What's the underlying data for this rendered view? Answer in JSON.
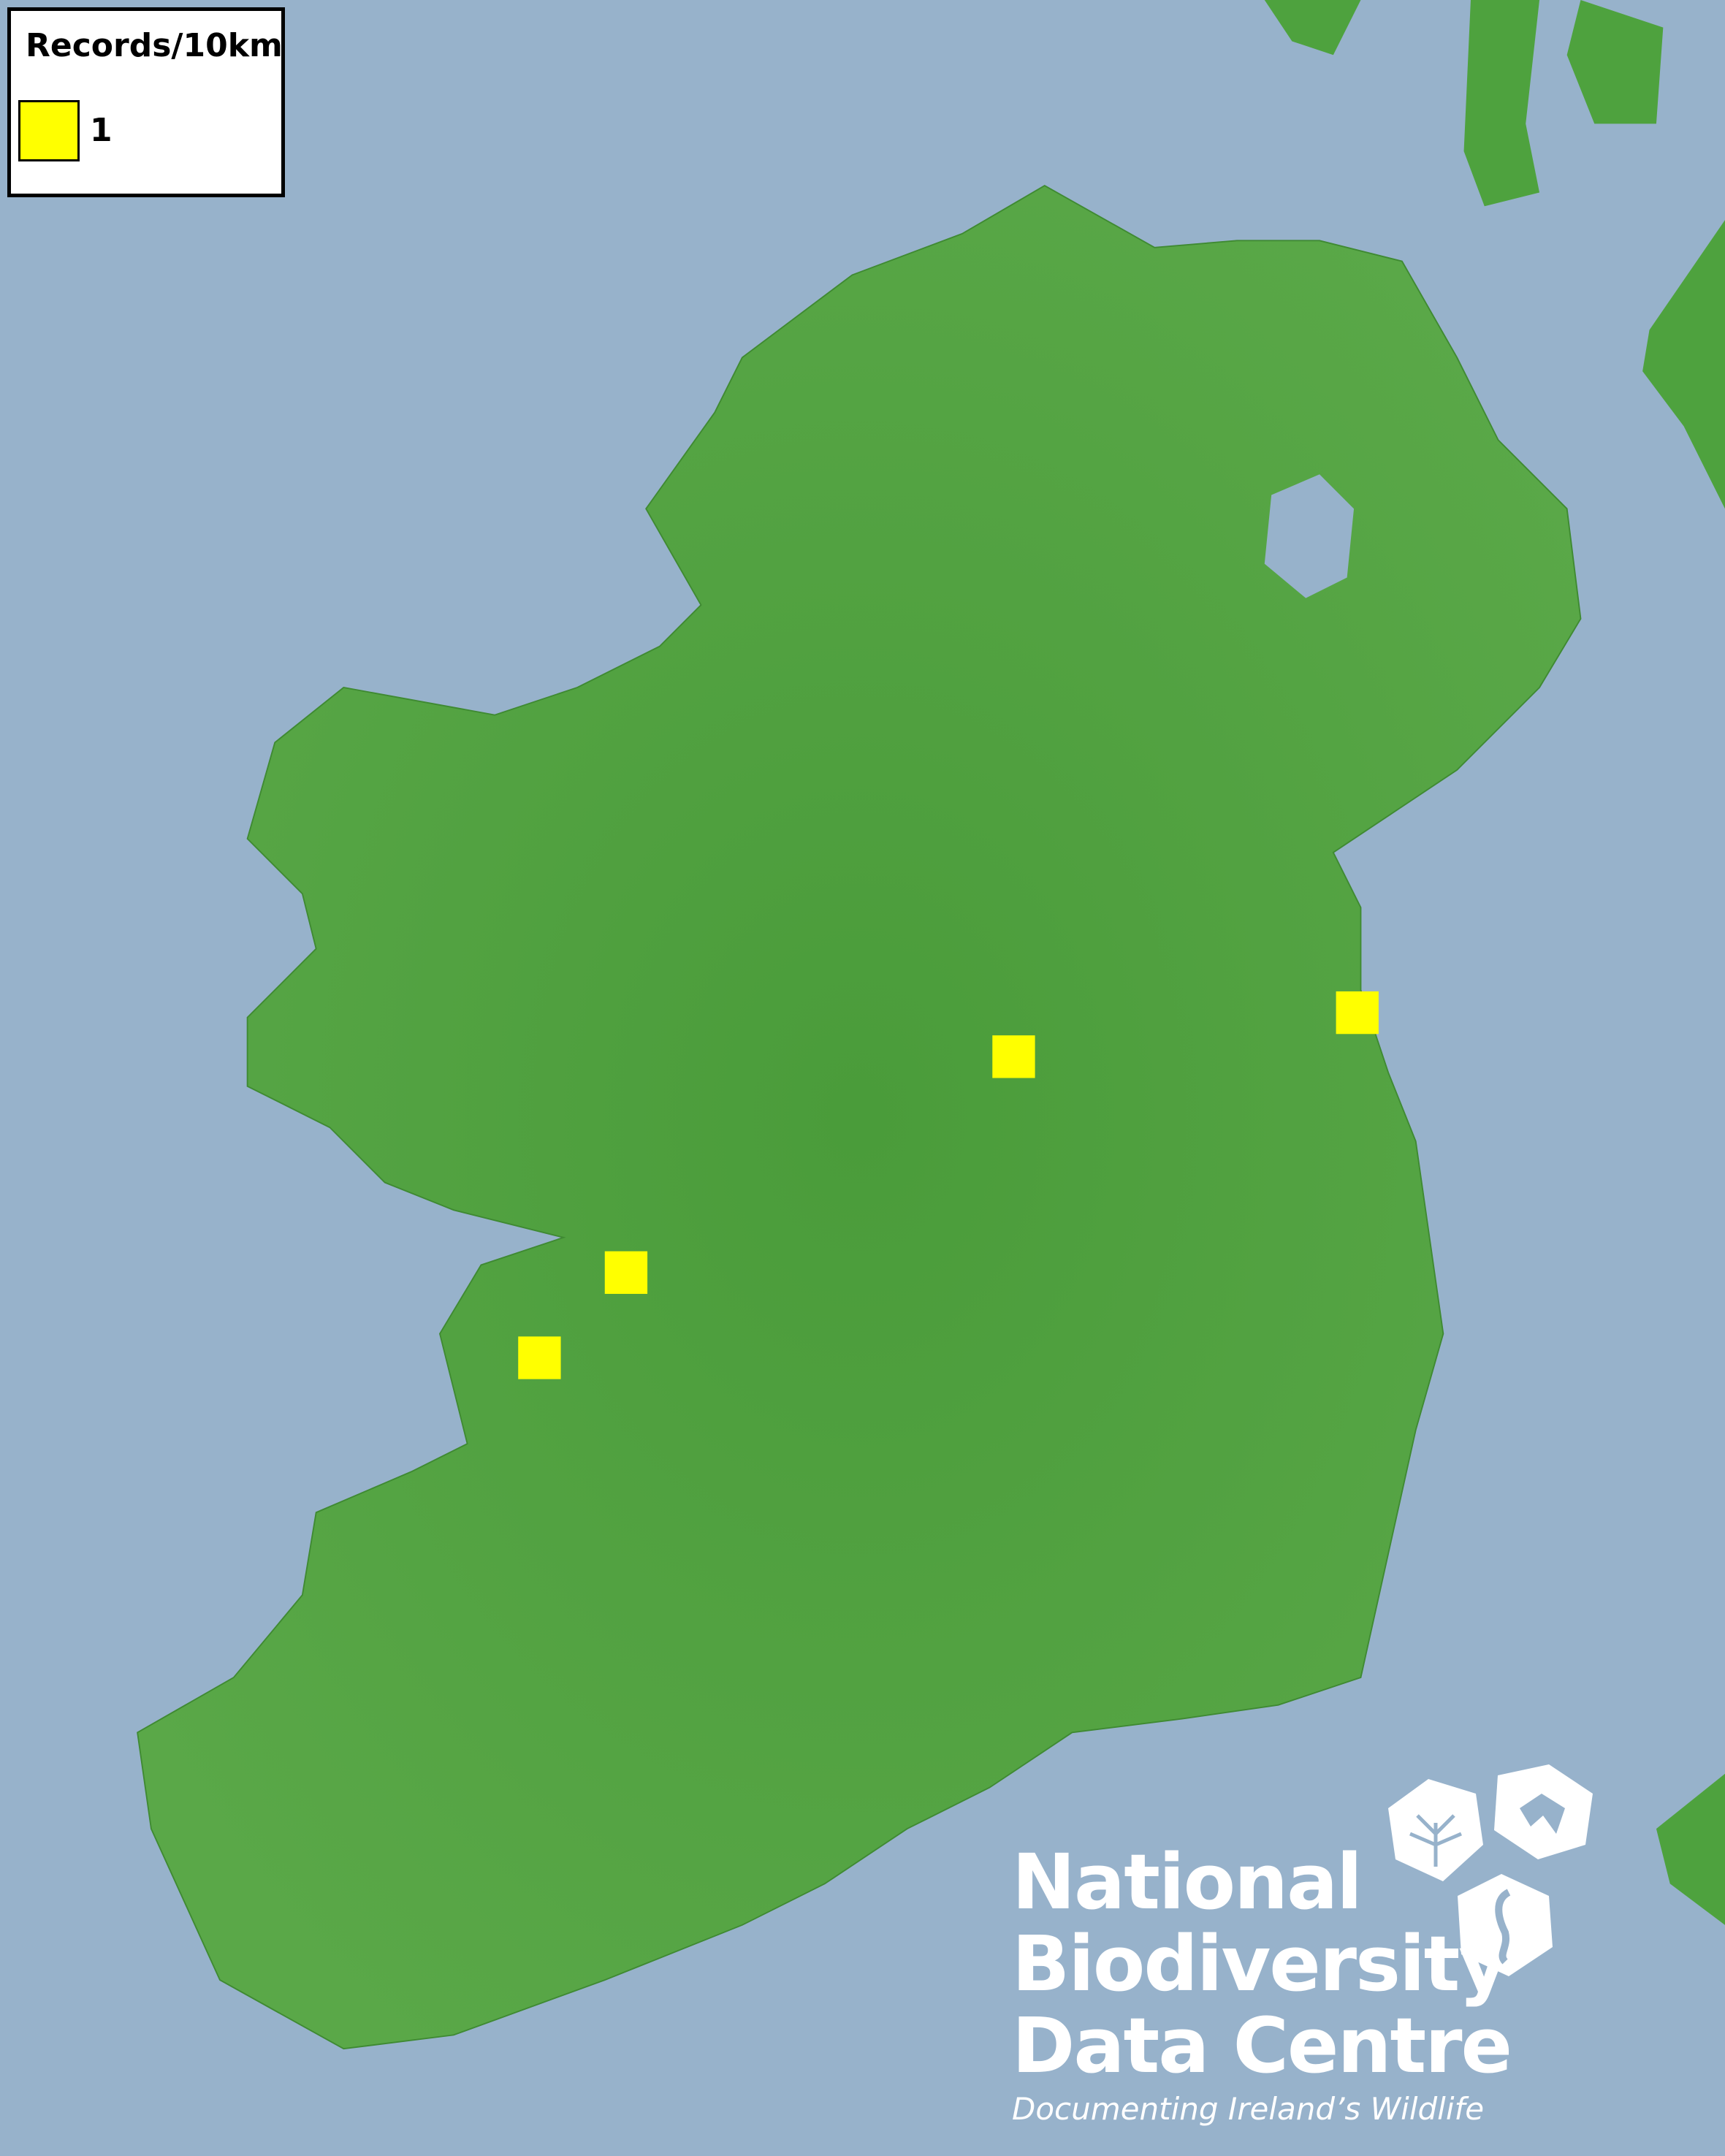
{
  "legend": {
    "title": "Records/10km",
    "items": [
      {
        "label": "1",
        "color": "#ffff00"
      }
    ]
  },
  "records": [
    {
      "count": 1,
      "location": "east coast"
    },
    {
      "count": 1,
      "location": "midlands"
    },
    {
      "count": 1,
      "location": "west (Clare)"
    },
    {
      "count": 1,
      "location": "west (Clare)"
    }
  ],
  "colors": {
    "sea": "#97b2cb",
    "land": "#4ea23e",
    "record": "#ffff00"
  },
  "logo": {
    "lines": [
      "National",
      "Biodiversity",
      "Data Centre"
    ],
    "tagline": "Documenting Ireland’s Wildlife"
  }
}
